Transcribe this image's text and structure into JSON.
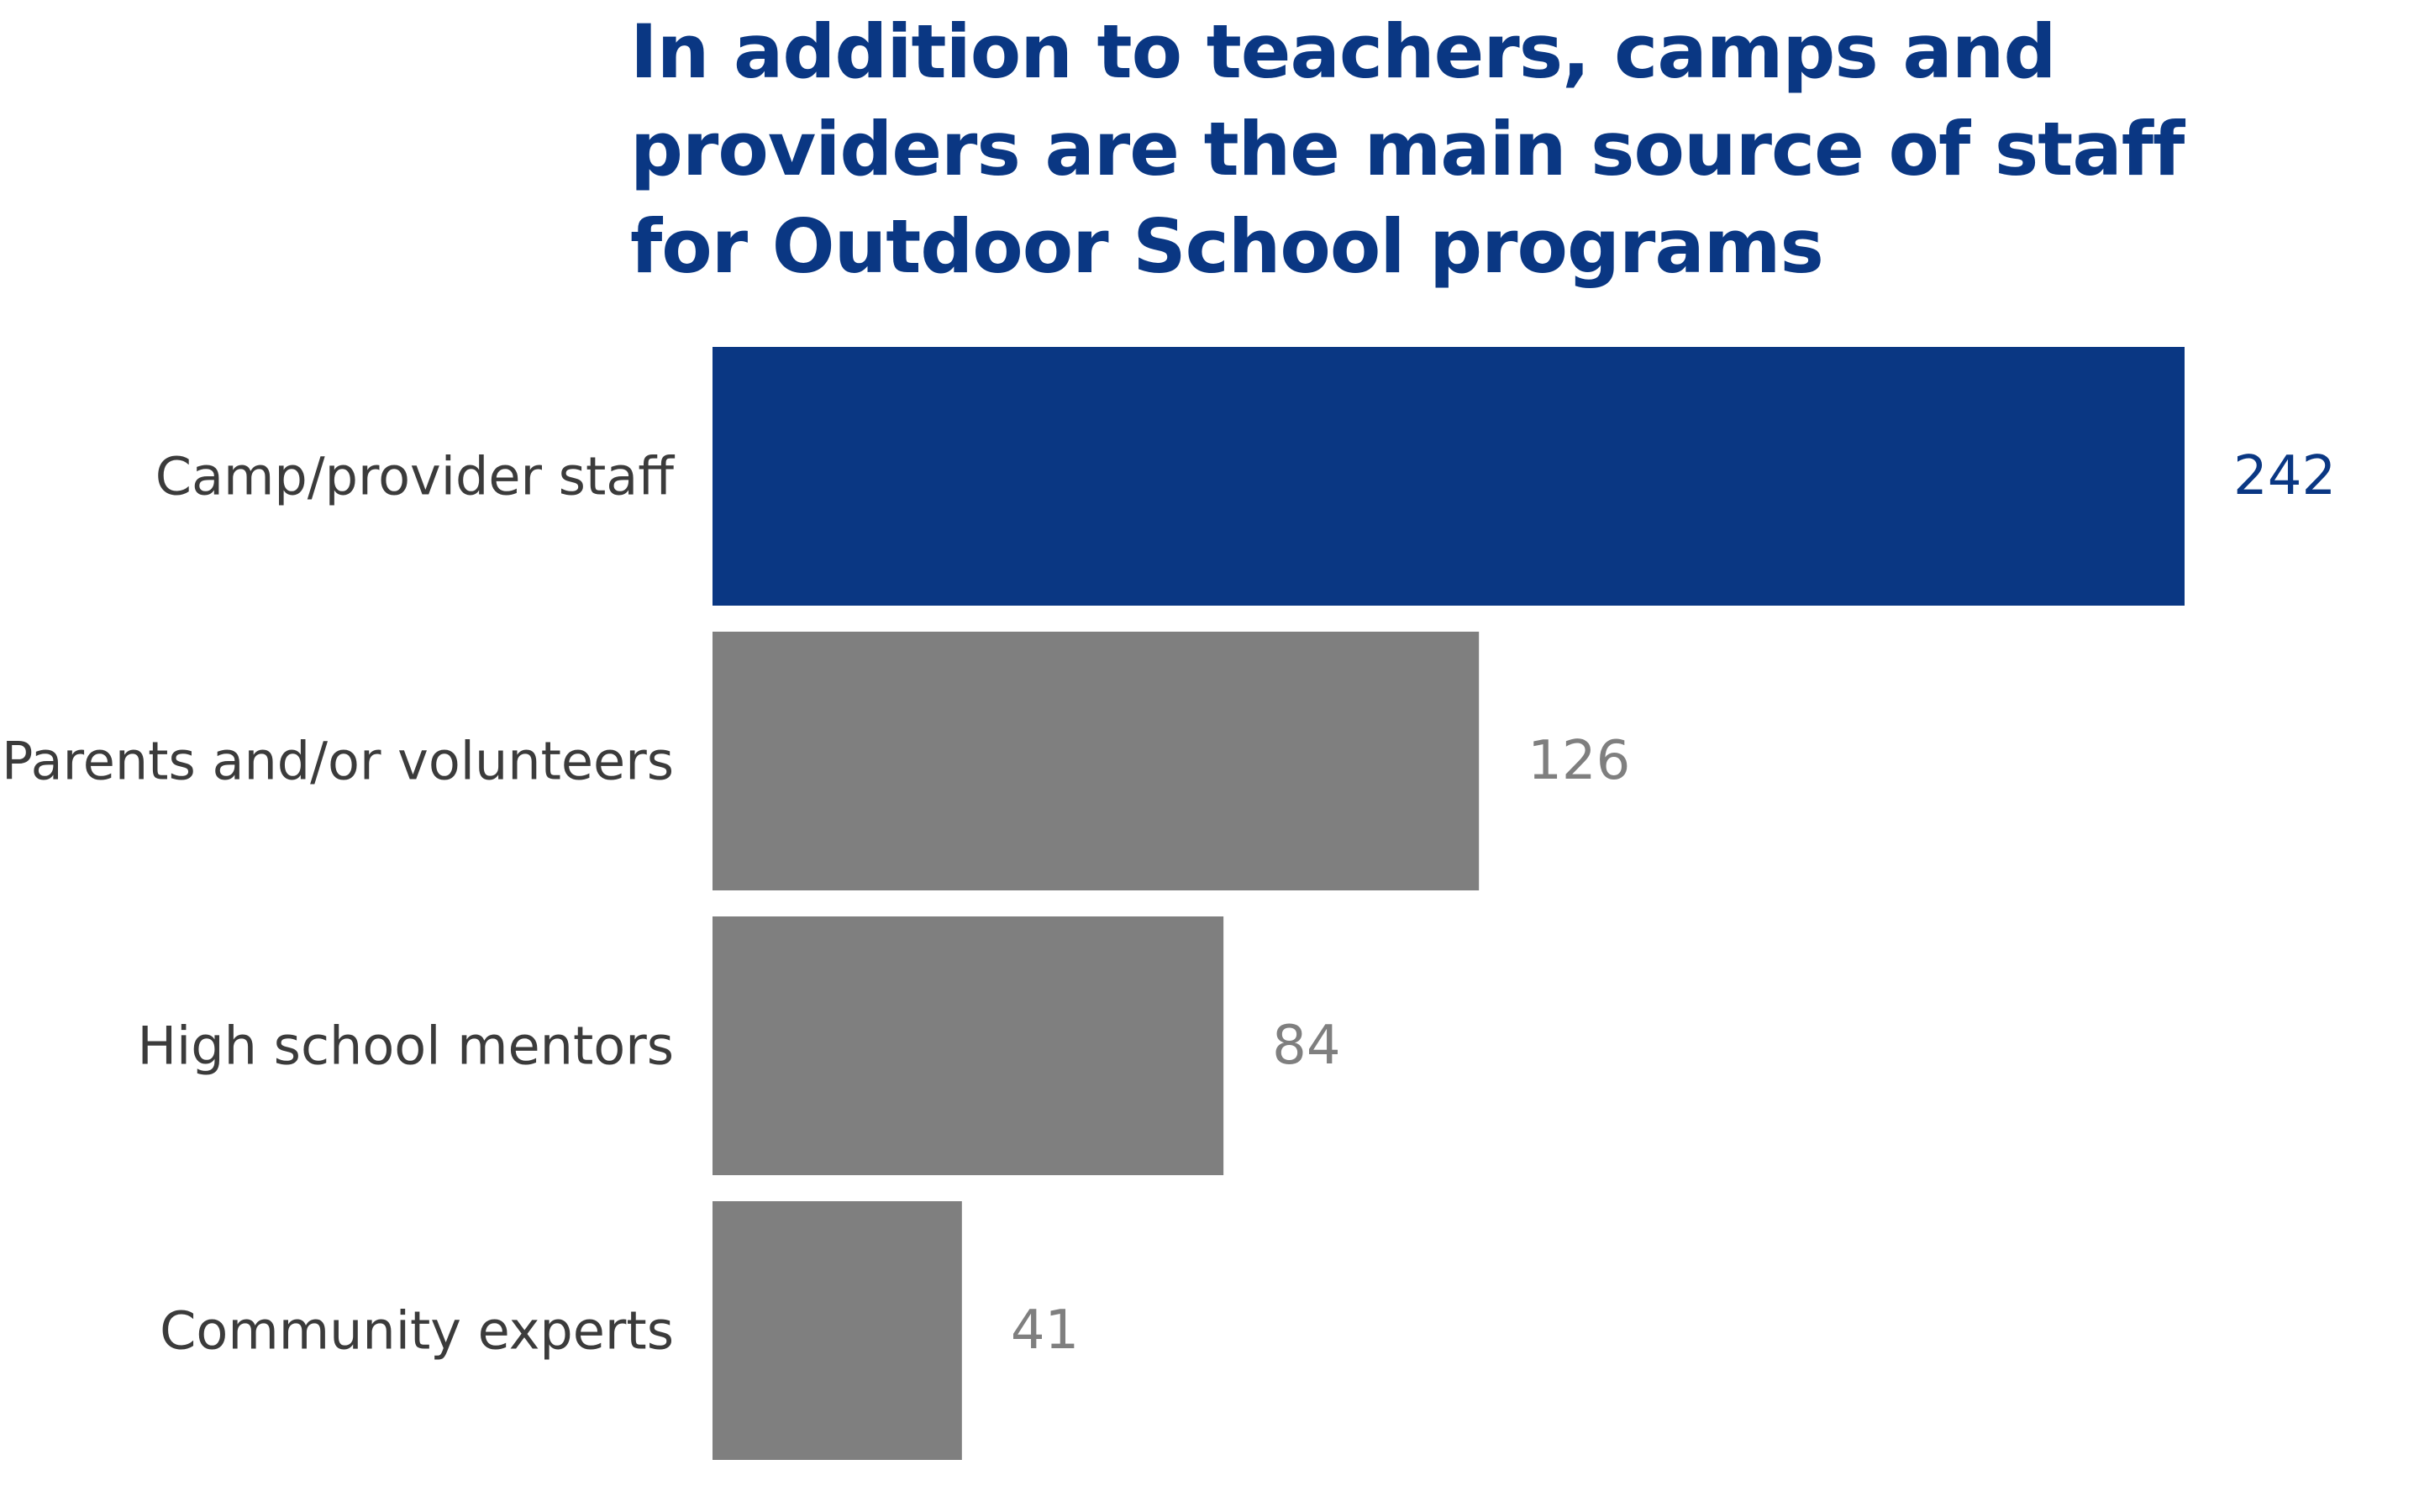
{
  "chart_data": {
    "type": "bar",
    "orientation": "horizontal",
    "title_lines": [
      "In addition to teachers, camps and",
      "providers are the main source of staff",
      "for Outdoor School programs"
    ],
    "categories": [
      "Camp/provider staff",
      "Parents and/or volunteers",
      "High school mentors",
      "Community experts"
    ],
    "values": [
      242,
      126,
      84,
      41
    ],
    "value_labels": [
      "242",
      "126",
      "84",
      "41"
    ],
    "xlim": [
      0,
      242
    ],
    "grid": false,
    "legend": "none",
    "colors": {
      "title": "#0a3783",
      "highlight": "#0a3783",
      "default": "#7f7f7f",
      "category_text": "#3b3b3b"
    },
    "highlight_index": 0
  }
}
